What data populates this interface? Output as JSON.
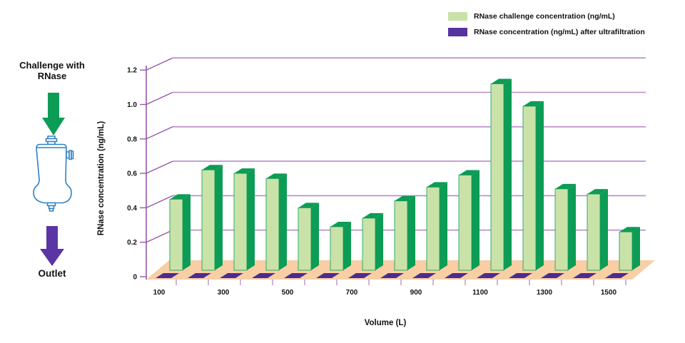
{
  "legend": {
    "items": [
      {
        "label": "RNase challenge concentration (ng/mL)",
        "color": "#C9E2A8"
      },
      {
        "label": "RNase concentration (ng/mL) after ultrafiltration",
        "color": "#56329E"
      }
    ]
  },
  "left_diagram": {
    "top_label": "Challenge with\nRNase",
    "bottom_label": "Outlet",
    "green_arrow_color": "#0C9C55",
    "purple_arrow_color": "#5C35A5",
    "capsule_outline_color": "#2E81C4"
  },
  "chart": {
    "y_axis_title": "RNase concentration (ng/mL)",
    "x_axis_title": "Volume (L)"
  },
  "chart_data": {
    "type": "bar",
    "projection": "3d",
    "title": "",
    "xlabel": "Volume (L)",
    "ylabel": "RNase concentration (ng/mL)",
    "x": [
      100,
      200,
      300,
      400,
      500,
      600,
      700,
      800,
      900,
      1000,
      1100,
      1200,
      1300,
      1400,
      1500
    ],
    "x_tick_labels": [
      "100",
      "300",
      "500",
      "700",
      "900",
      "1100",
      "1300",
      "1500"
    ],
    "yticks": [
      0,
      0.2,
      0.4,
      0.6,
      0.8,
      1.0,
      1.2
    ],
    "ylim": [
      0,
      1.2
    ],
    "grid": true,
    "legend_position": "top-right",
    "series": [
      {
        "name": "RNase challenge concentration (ng/mL)",
        "color": "#C9E2A8",
        "values": [
          0.45,
          0.62,
          0.6,
          0.57,
          0.4,
          0.29,
          0.34,
          0.44,
          0.52,
          0.59,
          1.12,
          0.99,
          0.51,
          0.48,
          0.26
        ]
      },
      {
        "name": "RNase concentration (ng/mL) after ultrafiltration",
        "color": "#56329E",
        "values": [
          0,
          0,
          0,
          0,
          0,
          0,
          0,
          0,
          0,
          0,
          0,
          0,
          0,
          0,
          0
        ]
      }
    ],
    "colors": {
      "bar_face": "#C9E2A8",
      "bar_side": "#0C9C55",
      "diamond": "#4E2B91",
      "floor": "#F8CEA5",
      "grid_front": "#9558A8",
      "grid_back": "#B78CCB",
      "x_tick": "#C29FD8"
    }
  }
}
